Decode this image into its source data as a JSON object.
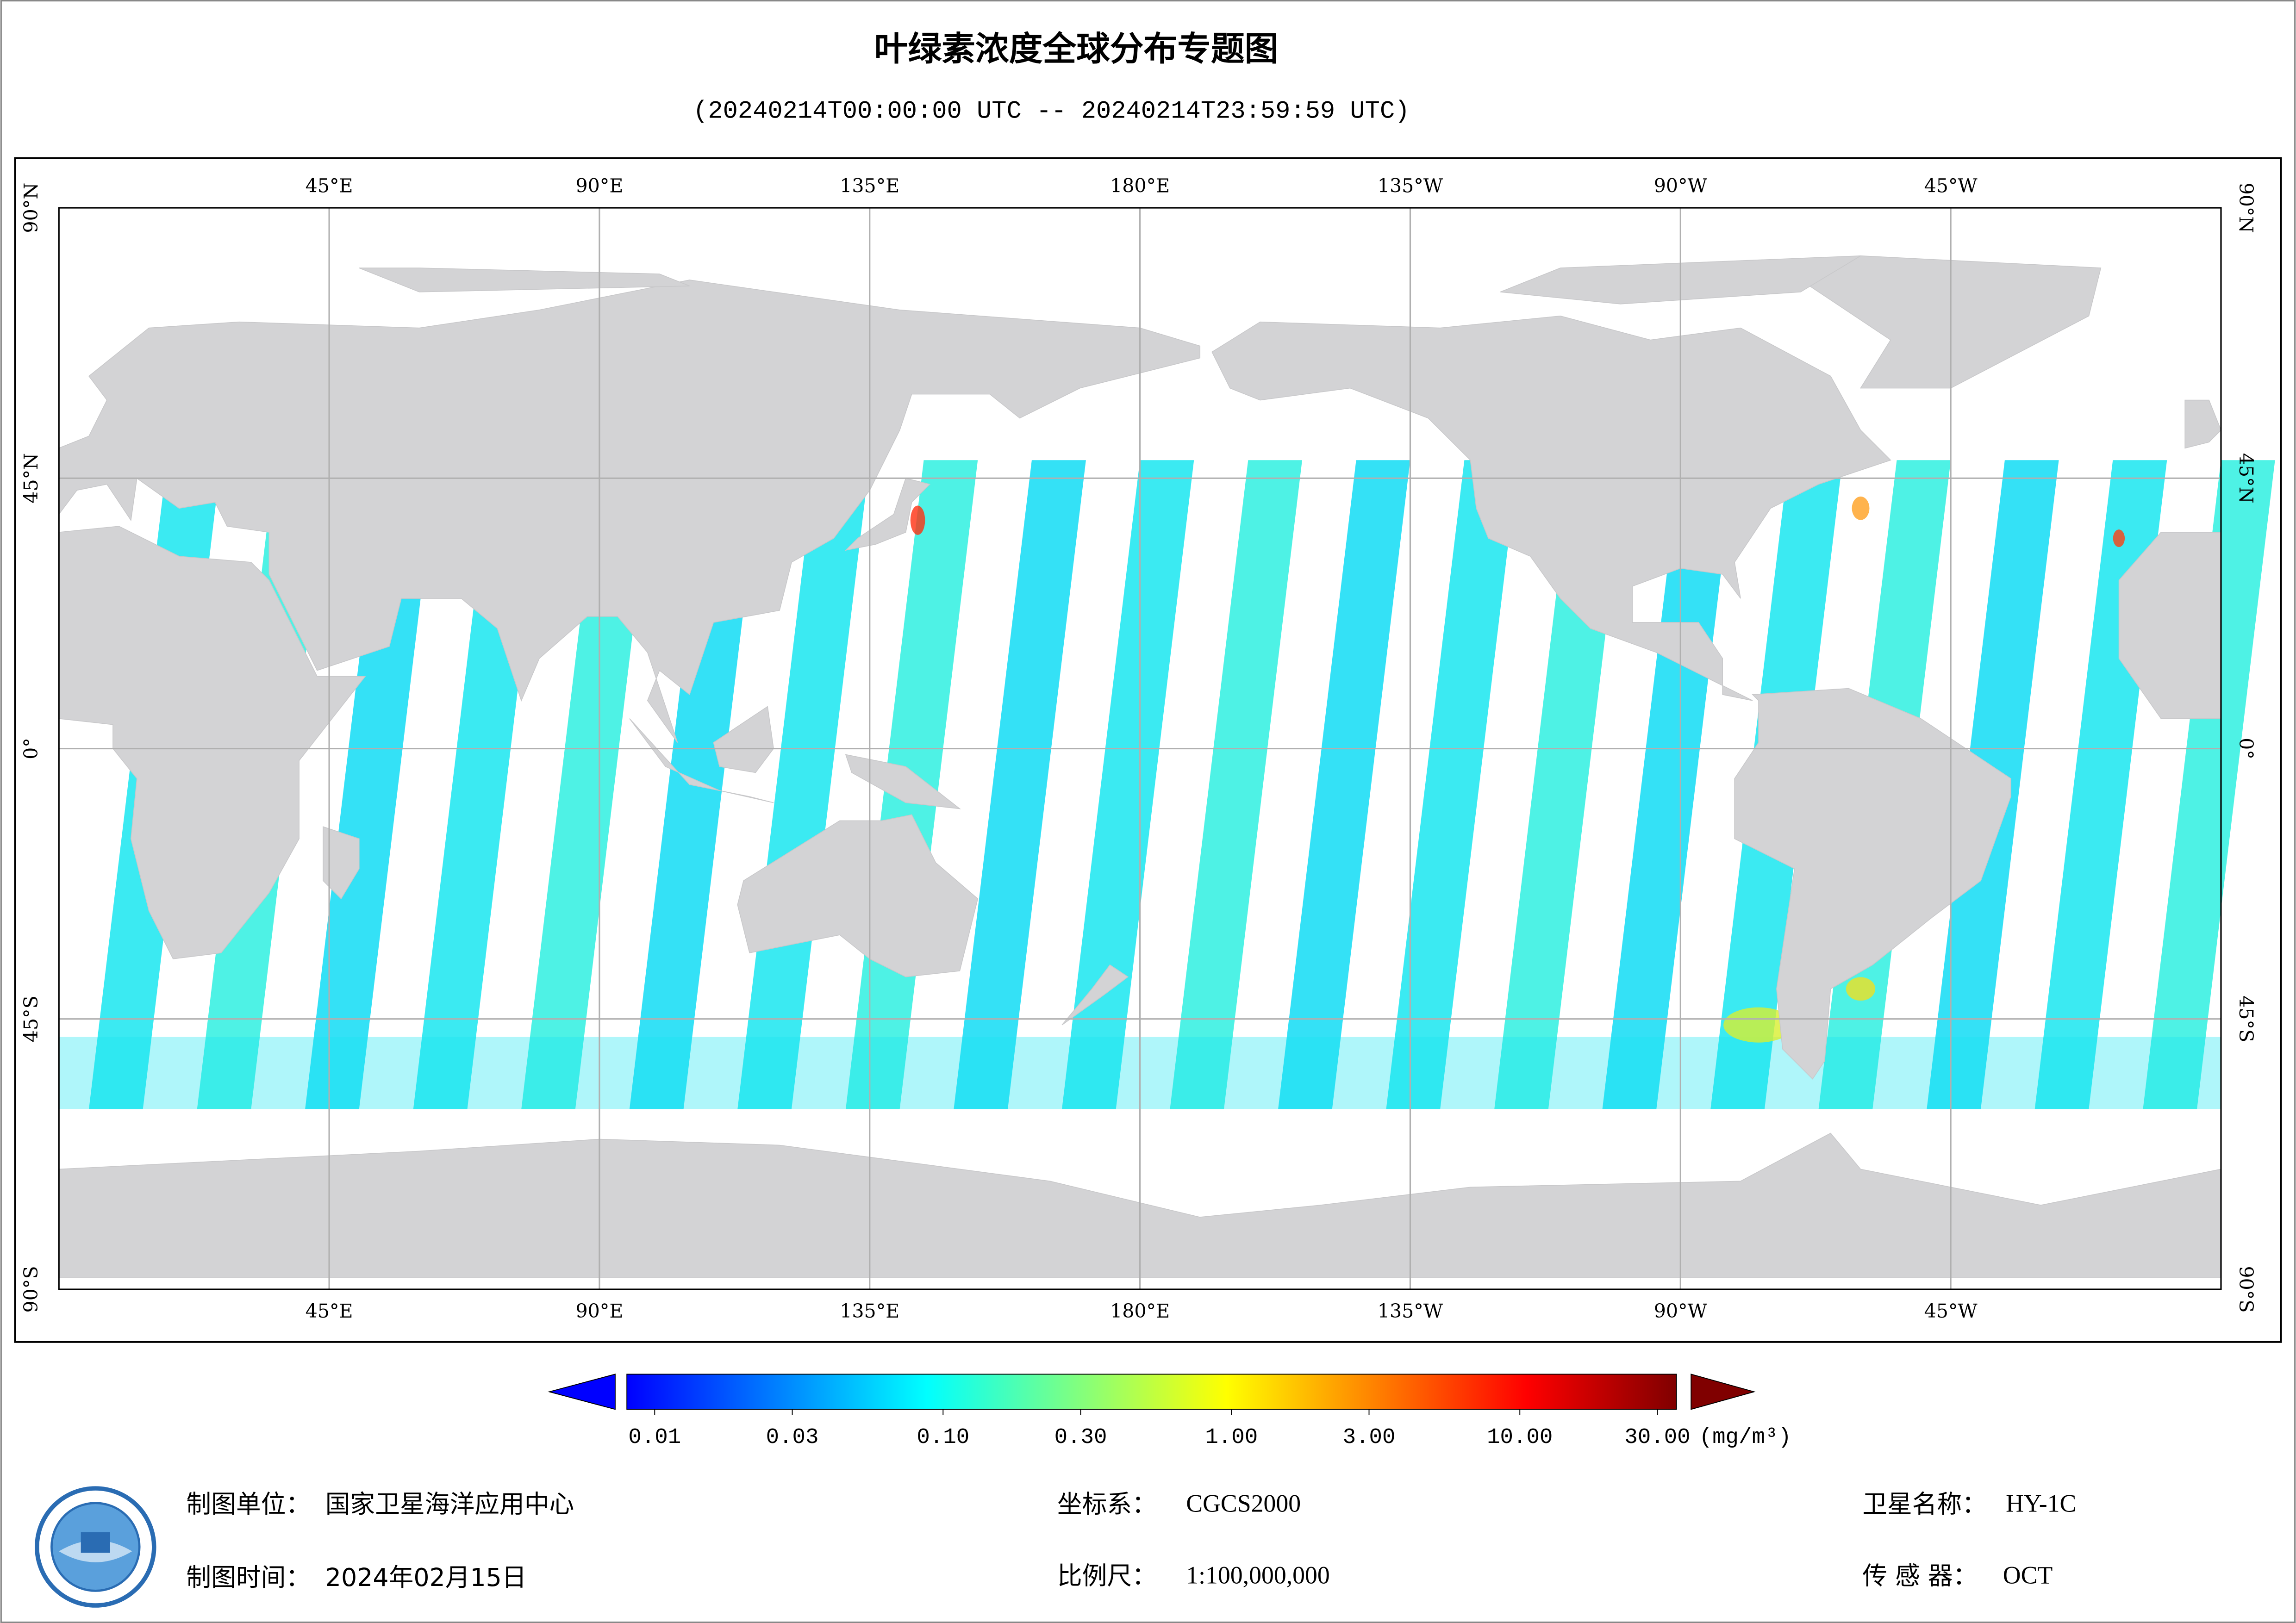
{
  "header": {
    "title": "叶绿素浓度全球分布专题图",
    "subtitle": "(20240214T00:00:00 UTC -- 20240214T23:59:59 UTC)"
  },
  "map": {
    "lon_labels": [
      "45°E",
      "90°E",
      "135°E",
      "180°E",
      "135°W",
      "90°W",
      "45°W"
    ],
    "lat_labels": [
      "90°N",
      "45°N",
      "0°",
      "45°S",
      "90°S"
    ]
  },
  "colorbar": {
    "scale": "log",
    "range": [
      0.01,
      30
    ],
    "ticks": [
      {
        "value": 0.01,
        "label": "0.01"
      },
      {
        "value": 0.03,
        "label": "0.03"
      },
      {
        "value": 0.1,
        "label": "0.10"
      },
      {
        "value": 0.3,
        "label": "0.30"
      },
      {
        "value": 1,
        "label": "1.00"
      },
      {
        "value": 3,
        "label": "3.00"
      },
      {
        "value": 10,
        "label": "10.00"
      },
      {
        "value": 30,
        "label": "30.00"
      }
    ],
    "unit": "(mg/m³)",
    "colors": [
      "#0000ff",
      "#0080ff",
      "#00ffff",
      "#80ff80",
      "#ffff00",
      "#ff8000",
      "#ff0000",
      "#800000"
    ]
  },
  "footer": {
    "unit": {
      "label": "制图单位：",
      "value": "国家卫星海洋应用中心"
    },
    "date": {
      "label": "制图时间：",
      "value": "2024年02月15日"
    },
    "crs": {
      "label": "坐标系：",
      "value": "CGCS2000"
    },
    "scale": {
      "label": "比例尺：",
      "value": "1:100,000,000"
    },
    "satellite": {
      "label": "卫星名称：",
      "value": "HY-1C"
    },
    "sensor": {
      "label": "传 感 器：",
      "value": "OCT"
    }
  }
}
